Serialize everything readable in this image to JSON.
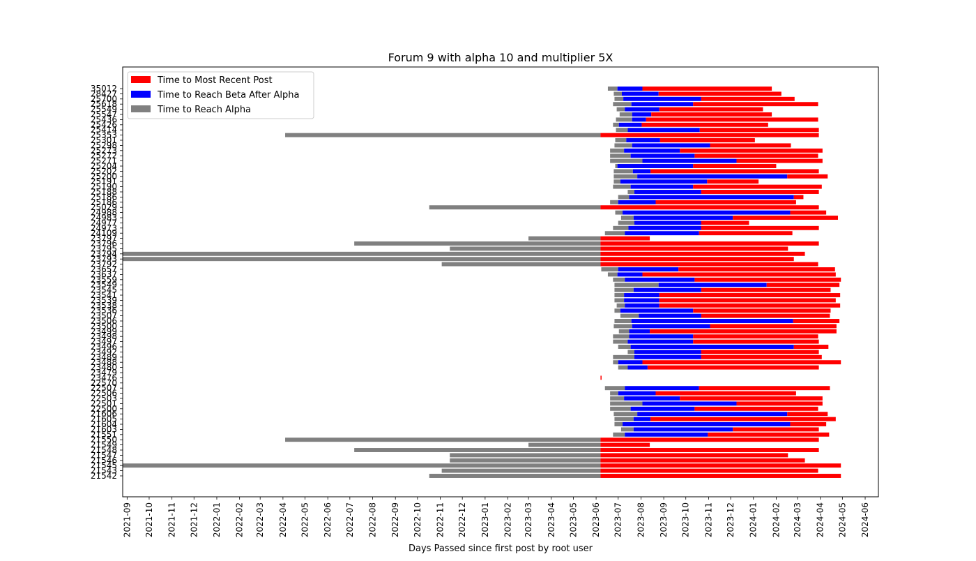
{
  "chart_data": {
    "type": "bar",
    "orientation": "horizontal",
    "stacked": true,
    "title": "Forum 9 with alpha 10 and multiplier 5X",
    "xlabel": "Days Passed since first post by root user",
    "ylabel": "",
    "x_tick_labels": [
      "2021-09",
      "2021-10",
      "2021-11",
      "2021-12",
      "2022-01",
      "2022-02",
      "2022-03",
      "2022-04",
      "2022-05",
      "2022-06",
      "2022-07",
      "2022-08",
      "2022-09",
      "2022-10",
      "2022-11",
      "2022-12",
      "2023-01",
      "2023-02",
      "2023-03",
      "2023-04",
      "2023-05",
      "2023-06",
      "2023-07",
      "2023-08",
      "2023-09",
      "2023-10",
      "2023-11",
      "2023-12",
      "2024-01",
      "2024-02",
      "2024-03",
      "2024-04",
      "2024-05",
      "2024-06"
    ],
    "xlim": [
      "2021-08-26",
      "2024-06-19"
    ],
    "legend": {
      "placement": "top-left",
      "entries": [
        {
          "label": "Time to Most Recent Post",
          "color": "#ff0000"
        },
        {
          "label": "Time to Reach Beta After Alpha",
          "color": "#0000ff"
        },
        {
          "label": "Time to Reach Alpha",
          "color": "#808080"
        }
      ]
    },
    "colors": {
      "alpha": "#808080",
      "beta": "#0000ff",
      "recent": "#ff0000"
    },
    "bars": [
      {
        "label": "35012",
        "start": "2023-06-17",
        "alpha_end": "2023-06-30",
        "beta_end": "2023-08-03",
        "end": "2024-01-26"
      },
      {
        "label": "28427",
        "start": "2023-06-25",
        "alpha_end": "2023-07-06",
        "beta_end": "2023-08-25",
        "end": "2024-02-08"
      },
      {
        "label": "25700",
        "start": "2023-06-26",
        "alpha_end": "2023-07-08",
        "beta_end": "2023-10-22",
        "end": "2024-02-26"
      },
      {
        "label": "25618",
        "start": "2023-06-24",
        "alpha_end": "2023-07-19",
        "beta_end": "2023-10-11",
        "end": "2024-03-29"
      },
      {
        "label": "25549",
        "start": "2023-06-29",
        "alpha_end": "2023-07-10",
        "beta_end": "2023-08-26",
        "end": "2024-01-14"
      },
      {
        "label": "25547",
        "start": "2023-07-03",
        "alpha_end": "2023-07-20",
        "beta_end": "2023-08-15",
        "end": "2024-01-26"
      },
      {
        "label": "25436",
        "start": "2023-06-28",
        "alpha_end": "2023-07-20",
        "beta_end": "2023-08-08",
        "end": "2024-03-29"
      },
      {
        "label": "25426",
        "start": "2023-06-24",
        "alpha_end": "2023-07-02",
        "beta_end": "2023-08-02",
        "end": "2024-01-21"
      },
      {
        "label": "25414",
        "start": "2023-06-28",
        "alpha_end": "2023-07-14",
        "beta_end": "2023-10-20",
        "end": "2024-03-30"
      },
      {
        "label": "25353",
        "start": "2022-04-04",
        "alpha_end": "2023-06-07",
        "beta_end": "2023-06-07",
        "end": "2024-03-30"
      },
      {
        "label": "25301",
        "start": "2023-06-27",
        "alpha_end": "2023-07-12",
        "beta_end": "2023-08-27",
        "end": "2024-01-03"
      },
      {
        "label": "25298",
        "start": "2023-06-26",
        "alpha_end": "2023-07-20",
        "beta_end": "2023-11-03",
        "end": "2024-02-21"
      },
      {
        "label": "25273",
        "start": "2023-06-20",
        "alpha_end": "2023-07-09",
        "beta_end": "2023-09-23",
        "end": "2024-04-04"
      },
      {
        "label": "25272",
        "start": "2023-06-20",
        "alpha_end": "2023-07-18",
        "beta_end": "2023-10-13",
        "end": "2024-03-29"
      },
      {
        "label": "25271",
        "start": "2023-06-20",
        "alpha_end": "2023-08-03",
        "beta_end": "2023-12-09",
        "end": "2024-04-04"
      },
      {
        "label": "25204",
        "start": "2023-06-27",
        "alpha_end": "2023-06-30",
        "beta_end": "2023-10-11",
        "end": "2024-02-01"
      },
      {
        "label": "25202",
        "start": "2023-06-25",
        "alpha_end": "2023-07-21",
        "beta_end": "2023-08-14",
        "end": "2024-03-30"
      },
      {
        "label": "25200",
        "start": "2023-06-25",
        "alpha_end": "2023-07-27",
        "beta_end": "2024-02-16",
        "end": "2024-04-11"
      },
      {
        "label": "25191",
        "start": "2023-06-25",
        "alpha_end": "2023-07-04",
        "beta_end": "2023-10-30",
        "end": "2024-01-08"
      },
      {
        "label": "25190",
        "start": "2023-06-24",
        "alpha_end": "2023-07-18",
        "beta_end": "2023-10-11",
        "end": "2024-04-03"
      },
      {
        "label": "25188",
        "start": "2023-07-14",
        "alpha_end": "2023-07-23",
        "beta_end": "2023-10-22",
        "end": "2024-03-30"
      },
      {
        "label": "25186",
        "start": "2023-07-01",
        "alpha_end": "2023-07-16",
        "beta_end": "2024-02-25",
        "end": "2024-03-09"
      },
      {
        "label": "25186",
        "start": "2023-06-20",
        "alpha_end": "2023-07-01",
        "beta_end": "2023-08-21",
        "end": "2024-02-28"
      },
      {
        "label": "25029",
        "start": "2022-10-17",
        "alpha_end": "2023-06-07",
        "beta_end": "2023-06-07",
        "end": "2024-03-30"
      },
      {
        "label": "24988",
        "start": "2023-06-27",
        "alpha_end": "2023-07-07",
        "beta_end": "2024-02-20",
        "end": "2024-04-09"
      },
      {
        "label": "24983",
        "start": "2023-07-05",
        "alpha_end": "2023-07-22",
        "beta_end": "2023-12-04",
        "end": "2024-04-25"
      },
      {
        "label": "24977",
        "start": "2023-07-01",
        "alpha_end": "2023-07-23",
        "beta_end": "2023-10-22",
        "end": "2023-12-26"
      },
      {
        "label": "24973",
        "start": "2023-06-24",
        "alpha_end": "2023-07-15",
        "beta_end": "2023-10-22",
        "end": "2024-03-30"
      },
      {
        "label": "24109",
        "start": "2023-06-13",
        "alpha_end": "2023-07-10",
        "beta_end": "2023-10-19",
        "end": "2024-02-23"
      },
      {
        "label": "23797",
        "start": "2023-03-01",
        "alpha_end": "2023-06-07",
        "beta_end": "2023-06-07",
        "end": "2023-08-13"
      },
      {
        "label": "23796",
        "start": "2022-07-07",
        "alpha_end": "2023-06-07",
        "beta_end": "2023-06-07",
        "end": "2024-03-30"
      },
      {
        "label": "23795",
        "start": "2022-11-14",
        "alpha_end": "2023-06-07",
        "beta_end": "2023-06-07",
        "end": "2024-02-17"
      },
      {
        "label": "23794",
        "start": "2021-08-26",
        "alpha_end": "2023-06-07",
        "beta_end": "2023-06-07",
        "end": "2024-03-11"
      },
      {
        "label": "23793",
        "start": "2021-08-26",
        "alpha_end": "2023-06-07",
        "beta_end": "2023-06-07",
        "end": "2024-02-25"
      },
      {
        "label": "23792",
        "start": "2022-11-03",
        "alpha_end": "2023-06-07",
        "beta_end": "2023-06-07",
        "end": "2024-03-29"
      },
      {
        "label": "23657",
        "start": "2023-06-08",
        "alpha_end": "2023-07-01",
        "beta_end": "2023-09-21",
        "end": "2024-04-21"
      },
      {
        "label": "23637",
        "start": "2023-06-17",
        "alpha_end": "2023-06-30",
        "beta_end": "2023-08-03",
        "end": "2024-04-22"
      },
      {
        "label": "23559",
        "start": "2023-06-24",
        "alpha_end": "2023-07-10",
        "beta_end": "2023-10-13",
        "end": "2024-04-29"
      },
      {
        "label": "23549",
        "start": "2023-06-26",
        "alpha_end": "2023-08-25",
        "beta_end": "2024-01-19",
        "end": "2024-04-27"
      },
      {
        "label": "23545",
        "start": "2023-06-26",
        "alpha_end": "2023-07-22",
        "beta_end": "2023-10-22",
        "end": "2024-04-15"
      },
      {
        "label": "23541",
        "start": "2023-06-26",
        "alpha_end": "2023-07-09",
        "beta_end": "2023-08-26",
        "end": "2024-04-28"
      },
      {
        "label": "23539",
        "start": "2023-06-26",
        "alpha_end": "2023-07-09",
        "beta_end": "2023-08-26",
        "end": "2024-04-22"
      },
      {
        "label": "23538",
        "start": "2023-06-29",
        "alpha_end": "2023-07-10",
        "beta_end": "2023-08-26",
        "end": "2024-04-28"
      },
      {
        "label": "23536",
        "start": "2023-06-26",
        "alpha_end": "2023-07-04",
        "beta_end": "2023-10-11",
        "end": "2024-04-15"
      },
      {
        "label": "23507",
        "start": "2023-07-04",
        "alpha_end": "2023-07-29",
        "beta_end": "2023-10-22",
        "end": "2024-04-14"
      },
      {
        "label": "23506",
        "start": "2023-06-26",
        "alpha_end": "2023-07-19",
        "beta_end": "2024-02-24",
        "end": "2024-04-27"
      },
      {
        "label": "23500",
        "start": "2023-06-25",
        "alpha_end": "2023-07-20",
        "beta_end": "2023-11-03",
        "end": "2024-04-23"
      },
      {
        "label": "23499",
        "start": "2023-07-02",
        "alpha_end": "2023-07-16",
        "beta_end": "2023-08-13",
        "end": "2024-04-23"
      },
      {
        "label": "23498",
        "start": "2023-06-24",
        "alpha_end": "2023-07-16",
        "beta_end": "2023-10-11",
        "end": "2024-03-29"
      },
      {
        "label": "23497",
        "start": "2023-06-24",
        "alpha_end": "2023-07-14",
        "beta_end": "2023-10-11",
        "end": "2024-03-30"
      },
      {
        "label": "23496",
        "start": "2023-07-01",
        "alpha_end": "2023-07-18",
        "beta_end": "2024-02-25",
        "end": "2024-04-12"
      },
      {
        "label": "23492",
        "start": "2023-07-14",
        "alpha_end": "2023-07-23",
        "beta_end": "2023-10-22",
        "end": "2024-03-30"
      },
      {
        "label": "23489",
        "start": "2023-06-24",
        "alpha_end": "2023-07-23",
        "beta_end": "2023-10-22",
        "end": "2024-04-03"
      },
      {
        "label": "23488",
        "start": "2023-06-24",
        "alpha_end": "2023-07-01",
        "beta_end": "2023-08-03",
        "end": "2024-04-29"
      },
      {
        "label": "23480",
        "start": "2023-07-01",
        "alpha_end": "2023-07-14",
        "beta_end": "2023-08-10",
        "end": "2024-03-30"
      },
      {
        "label": "23479",
        "start": "2023-06-07",
        "alpha_end": "2023-06-07",
        "beta_end": "2023-06-07",
        "end": "2023-06-07"
      },
      {
        "label": "23476",
        "start": "2023-06-07",
        "alpha_end": "2023-06-07",
        "beta_end": "2023-06-07",
        "end": "2023-06-08"
      },
      {
        "label": "22570",
        "start": "2023-06-07",
        "alpha_end": "2023-06-07",
        "beta_end": "2023-06-07",
        "end": "2023-06-07"
      },
      {
        "label": "22507",
        "start": "2023-06-13",
        "alpha_end": "2023-07-10",
        "beta_end": "2023-10-19",
        "end": "2024-04-14"
      },
      {
        "label": "22506",
        "start": "2023-06-20",
        "alpha_end": "2023-07-01",
        "beta_end": "2023-08-21",
        "end": "2024-02-28"
      },
      {
        "label": "22503",
        "start": "2023-06-20",
        "alpha_end": "2023-07-09",
        "beta_end": "2023-09-23",
        "end": "2024-04-04"
      },
      {
        "label": "22501",
        "start": "2023-06-20",
        "alpha_end": "2023-08-03",
        "beta_end": "2023-12-09",
        "end": "2024-04-04"
      },
      {
        "label": "22500",
        "start": "2023-06-20",
        "alpha_end": "2023-07-18",
        "beta_end": "2023-10-13",
        "end": "2024-03-29"
      },
      {
        "label": "21606",
        "start": "2023-06-25",
        "alpha_end": "2023-07-27",
        "beta_end": "2024-02-16",
        "end": "2024-04-11"
      },
      {
        "label": "21605",
        "start": "2023-06-26",
        "alpha_end": "2023-07-22",
        "beta_end": "2023-08-14",
        "end": "2024-04-22"
      },
      {
        "label": "21604",
        "start": "2023-06-26",
        "alpha_end": "2023-07-07",
        "beta_end": "2024-02-20",
        "end": "2024-04-09"
      },
      {
        "label": "21603",
        "start": "2023-07-05",
        "alpha_end": "2023-07-22",
        "beta_end": "2023-12-04",
        "end": "2024-03-30"
      },
      {
        "label": "21551",
        "start": "2023-06-24",
        "alpha_end": "2023-07-10",
        "beta_end": "2023-10-31",
        "end": "2024-04-13"
      },
      {
        "label": "21550",
        "start": "2022-04-04",
        "alpha_end": "2023-06-07",
        "beta_end": "2023-06-07",
        "end": "2024-03-30"
      },
      {
        "label": "21549",
        "start": "2023-03-01",
        "alpha_end": "2023-06-07",
        "beta_end": "2023-06-07",
        "end": "2023-08-13"
      },
      {
        "label": "21548",
        "start": "2022-07-07",
        "alpha_end": "2023-06-07",
        "beta_end": "2023-06-07",
        "end": "2024-03-30"
      },
      {
        "label": "21547",
        "start": "2022-11-14",
        "alpha_end": "2023-06-07",
        "beta_end": "2023-06-07",
        "end": "2024-02-17"
      },
      {
        "label": "21546",
        "start": "2022-11-14",
        "alpha_end": "2023-06-07",
        "beta_end": "2023-06-07",
        "end": "2024-03-11"
      },
      {
        "label": "21545",
        "start": "2021-08-26",
        "alpha_end": "2023-06-07",
        "beta_end": "2023-06-07",
        "end": "2024-04-29"
      },
      {
        "label": "21543",
        "start": "2022-11-03",
        "alpha_end": "2023-06-07",
        "beta_end": "2023-06-07",
        "end": "2024-03-29"
      },
      {
        "label": "21542",
        "start": "2022-10-17",
        "alpha_end": "2023-06-07",
        "beta_end": "2023-06-07",
        "end": "2024-04-29"
      }
    ]
  }
}
